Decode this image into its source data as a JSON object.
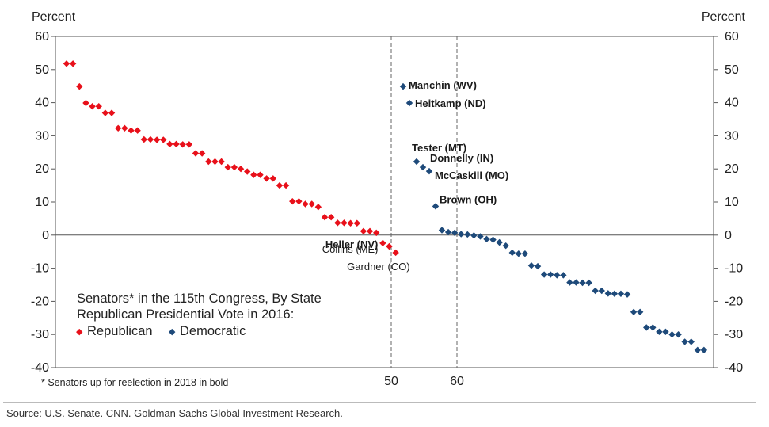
{
  "chart_data": {
    "type": "scatter",
    "left_axis_title": "Percent",
    "right_axis_title": "Percent",
    "ylim": [
      -40,
      60
    ],
    "y_ticks": [
      "60",
      "50",
      "40",
      "30",
      "20",
      "10",
      "0",
      "-10",
      "-20",
      "-30",
      "-40"
    ],
    "x_ticks": [
      "50",
      "60"
    ],
    "x_reference_lines": [
      50,
      60
    ],
    "colors": {
      "republican": "#e8101a",
      "democratic": "#1e4a7a"
    },
    "series": [
      {
        "name": "Republican",
        "marker": "diamond",
        "values": [
          51.8,
          51.8,
          44.9,
          39.9,
          38.9,
          38.9,
          36.9,
          36.9,
          32.3,
          32.3,
          31.6,
          31.6,
          28.9,
          28.9,
          28.8,
          28.8,
          27.5,
          27.5,
          27.4,
          27.4,
          24.7,
          24.7,
          22.2,
          22.2,
          22.2,
          20.5,
          20.5,
          20.0,
          19.2,
          18.2,
          18.2,
          17.1,
          17.1,
          15.0,
          15.0,
          10.2,
          10.2,
          9.4,
          9.4,
          8.5,
          5.4,
          5.4,
          3.7,
          3.7,
          3.6,
          3.6,
          1.2,
          1.2,
          0.7,
          -2.4,
          -3.4,
          -5.3
        ]
      },
      {
        "name": "Democratic",
        "marker": "diamond",
        "values": [
          44.9,
          39.9,
          22.2,
          20.5,
          19.3,
          8.7,
          1.5,
          0.9,
          0.7,
          0.3,
          0.2,
          -0.1,
          -0.4,
          -1.2,
          -1.4,
          -2.2,
          -3.2,
          -5.3,
          -5.6,
          -5.6,
          -9.2,
          -9.4,
          -11.9,
          -11.9,
          -12.1,
          -12.1,
          -14.3,
          -14.3,
          -14.4,
          -14.4,
          -16.8,
          -16.8,
          -17.6,
          -17.7,
          -17.7,
          -17.9,
          -23.2,
          -23.2,
          -27.9,
          -27.9,
          -29.2,
          -29.2,
          -30.0,
          -30.0,
          -32.2,
          -32.2,
          -34.7,
          -34.7
        ]
      }
    ],
    "annotations": [
      {
        "text": "Manchin (WV)",
        "bold": true,
        "series": "Democratic",
        "index": 0
      },
      {
        "text": "Heitkamp (ND)",
        "bold": true,
        "series": "Democratic",
        "index": 1
      },
      {
        "text": "Tester (MT)",
        "bold": true,
        "series": "Democratic",
        "index": 2
      },
      {
        "text": "Donnelly (IN)",
        "bold": true,
        "series": "Democratic",
        "index": 3
      },
      {
        "text": "McCaskill (MO)",
        "bold": true,
        "series": "Democratic",
        "index": 4
      },
      {
        "text": "Brown (OH)",
        "bold": true,
        "series": "Democratic",
        "index": 5
      },
      {
        "text": "Heller (NV)",
        "bold": true,
        "series": "Republican",
        "index": 49
      },
      {
        "text": "Collins (ME)",
        "bold": false,
        "series": "Republican",
        "index": 50
      },
      {
        "text": "Gardner (CO)",
        "bold": false,
        "series": "Republican",
        "index": 51
      }
    ],
    "legend": {
      "title_line1": "Senators* in the 115th Congress, By State",
      "title_line2": "Republican Presidential Vote in 2016:",
      "items": [
        {
          "label": "Republican",
          "symbol": "◆"
        },
        {
          "label": "Democratic",
          "symbol": "◆"
        }
      ]
    },
    "footnote": "* Senators up for reelection in 2018 in bold"
  },
  "source": "Source: U.S. Senate. CNN. Goldman Sachs Global Investment Research."
}
